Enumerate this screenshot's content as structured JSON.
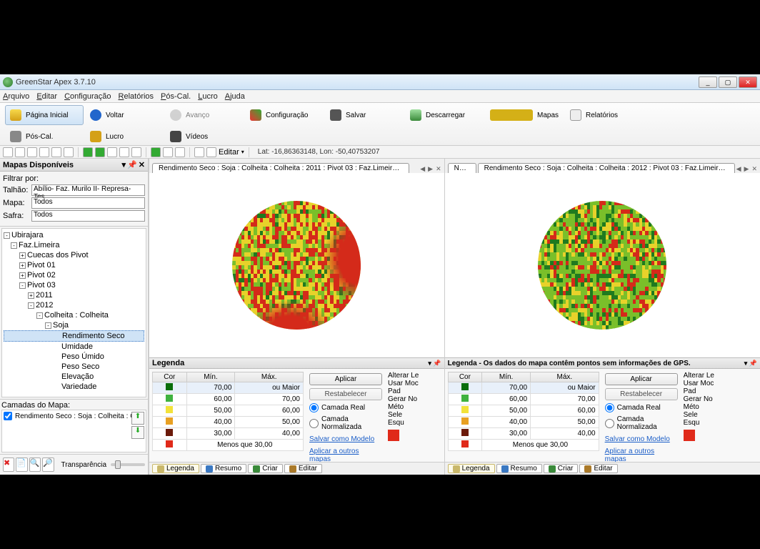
{
  "window": {
    "title": "GreenStar Apex 3.7.10"
  },
  "menus": [
    "Arquivo",
    "Editar",
    "Configuração",
    "Relatórios",
    "Pós-Cal.",
    "Lucro",
    "Ajuda"
  ],
  "toolbar_row1": [
    {
      "label": "Página Inicial",
      "icon": "home",
      "active": true
    },
    {
      "label": "Voltar",
      "icon": "back"
    },
    {
      "label": "Avanço",
      "icon": "fwd",
      "disabled": true
    },
    {
      "label": "Configuração",
      "icon": "cfg"
    },
    {
      "label": "Salvar",
      "icon": "save"
    },
    {
      "label": "Descarregar",
      "icon": "dl"
    },
    {
      "label": "Mapas",
      "icon": "maps"
    },
    {
      "label": "Relatórios",
      "icon": "rep"
    }
  ],
  "toolbar_row2": [
    {
      "label": "Pós-Cal.",
      "icon": "pos"
    },
    {
      "label": "Lucro",
      "icon": "lucro"
    },
    {
      "label": "Vídeos",
      "icon": "vid"
    }
  ],
  "editor_label": "Editar",
  "coords": "Lat: -16,86363148, Lon: -50,40753207",
  "sidebar": {
    "header": "Mapas Disponíveis",
    "filter_label": "Filtrar por:",
    "filters": {
      "talhao_label": "Talhão:",
      "talhao_value": "Abílio- Faz. Murilo II- Represa- Tes",
      "mapa_label": "Mapa:",
      "mapa_value": "Todos",
      "safra_label": "Safra:",
      "safra_value": "Todos"
    },
    "tree": {
      "root": "Ubirajara",
      "l1": "Faz.Limeira",
      "items": [
        "Cuecas dos Pivot",
        "Pivot 01",
        "Pivot 02",
        "Pivot 03"
      ],
      "years": [
        "2011",
        "2012"
      ],
      "op": "Colheita : Colheita",
      "crop": "Soja",
      "measures": [
        "Rendimento Seco",
        "Umidade",
        "Peso Úmido",
        "Peso Seco",
        "Elevação",
        "Variedade"
      ]
    },
    "layers_header": "Camadas do Mapa:",
    "layer_checked": "Rendimento Seco : Soja : Colheita : Colhei",
    "transparency_label": "Transparência"
  },
  "map1": {
    "tab": "Rendimento Seco : Soja : Colheita : Colheita : 2011 : Pivot 03 : Faz.Limeira : Ubirajara",
    "colors_dominant": [
      "#d42a1a",
      "#e8d22a",
      "#7abf2a",
      "#1f7a1f"
    ],
    "colors_ratio": [
      0.35,
      0.35,
      0.22,
      0.08
    ],
    "legend_title": "Legenda"
  },
  "map2": {
    "tab_pre": "Novo",
    "tab": "Rendimento Seco : Soja : Colheita : Colheita : 2012 : Pivot 03 : Faz.Limeira : Ubirajara",
    "colors_dominant": [
      "#d42a1a",
      "#e8d22a",
      "#7abf2a",
      "#1f7a1f"
    ],
    "colors_ratio": [
      0.18,
      0.22,
      0.42,
      0.18
    ],
    "legend_title": "Legenda - Os dados do mapa contêm pontos sem informações de GPS."
  },
  "legend": {
    "cols": {
      "cor": "Cor",
      "min": "Mín.",
      "max": "Máx."
    },
    "rows": [
      {
        "color": "#0a6e0a",
        "min": "70,00",
        "max": "ou Maior",
        "hl": true
      },
      {
        "color": "#3fb23f",
        "min": "60,00",
        "max": "70,00"
      },
      {
        "color": "#f2e23a",
        "min": "50,00",
        "max": "60,00"
      },
      {
        "color": "#e8a022",
        "min": "40,00",
        "max": "50,00"
      },
      {
        "color": "#6b1a0a",
        "min": "30,00",
        "max": "40,00"
      },
      {
        "color": "#e02a1a",
        "min": "Menos que",
        "max": "30,00",
        "span": true
      }
    ],
    "apply": "Aplicar",
    "reset": "Restabelecer",
    "radio_real": "Camada Real",
    "radio_norm": "Camada Normalizada",
    "save_model": "Salvar como Modelo",
    "apply_others": "Aplicar a outros mapas",
    "side_items": [
      "Alterar Le",
      "Usar Moc",
      "Pad",
      "Gerar No",
      "Méto",
      "Sele",
      "Esqu"
    ],
    "tabs": [
      "Legenda",
      "Resumo",
      "Criar",
      "Editar"
    ]
  }
}
